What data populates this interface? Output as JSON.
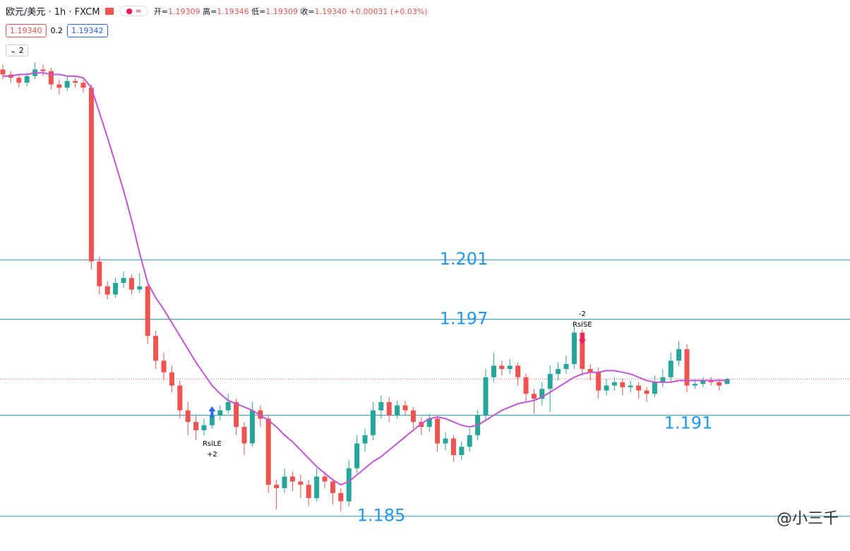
{
  "chart_data": {
    "type": "candlestick",
    "title": "欧元/美元 · 1h · FXCM",
    "ohlc_legend": [
      {
        "key": "开=",
        "value": "1.19309"
      },
      {
        "key": "高=",
        "value": "1.19346"
      },
      {
        "key": "低=",
        "value": "1.19309"
      },
      {
        "key": "收=",
        "value": "1.19340"
      }
    ],
    "change": "+0.00031 (+0.03%)",
    "bid": "1.19340",
    "spread": "0.2",
    "ask": "1.19342",
    "indicator_count": "2",
    "up_color": "#26a69a",
    "down_color": "#ef5350",
    "ma_color": "#c056d6",
    "ylim": [
      1.183,
      1.2163
    ],
    "ohlc": [
      [
        1.2121,
        1.2124,
        1.2115,
        1.2118
      ],
      [
        1.2118,
        1.212,
        1.2113,
        1.2116
      ],
      [
        1.2116,
        1.2118,
        1.211,
        1.2113
      ],
      [
        1.2113,
        1.2119,
        1.2111,
        1.2117
      ],
      [
        1.2117,
        1.2125,
        1.2115,
        1.2121
      ],
      [
        1.2121,
        1.2124,
        1.2117,
        1.212
      ],
      [
        1.212,
        1.2122,
        1.2109,
        1.2112
      ],
      [
        1.2112,
        1.2115,
        1.2106,
        1.211
      ],
      [
        1.211,
        1.2117,
        1.2108,
        1.2114
      ],
      [
        1.2114,
        1.2116,
        1.211,
        1.2113
      ],
      [
        1.2113,
        1.2115,
        1.2107,
        1.211
      ],
      [
        1.211,
        1.2112,
        1.2,
        1.2005
      ],
      [
        1.2005,
        1.2008,
        1.1985,
        1.199
      ],
      [
        1.199,
        1.1993,
        1.1982,
        1.1985
      ],
      [
        1.1985,
        1.1995,
        1.1983,
        1.1992
      ],
      [
        1.1992,
        1.1999,
        1.1989,
        1.1995
      ],
      [
        1.1995,
        1.1997,
        1.1985,
        1.1988
      ],
      [
        1.1988,
        1.1998,
        1.1986,
        1.199
      ],
      [
        1.199,
        1.1992,
        1.1955,
        1.196
      ],
      [
        1.196,
        1.1963,
        1.194,
        1.1945
      ],
      [
        1.1945,
        1.195,
        1.1933,
        1.1938
      ],
      [
        1.1938,
        1.1942,
        1.1926,
        1.193
      ],
      [
        1.193,
        1.1933,
        1.191,
        1.1915
      ],
      [
        1.1915,
        1.192,
        1.19,
        1.1908
      ],
      [
        1.1908,
        1.1912,
        1.1897,
        1.1903
      ],
      [
        1.1903,
        1.191,
        1.19,
        1.1906
      ],
      [
        1.1906,
        1.1915,
        1.1904,
        1.1912
      ],
      [
        1.1912,
        1.1918,
        1.1909,
        1.1915
      ],
      [
        1.1915,
        1.1925,
        1.1913,
        1.192
      ],
      [
        1.192,
        1.1922,
        1.19,
        1.1905
      ],
      [
        1.1905,
        1.1908,
        1.1888,
        1.1895
      ],
      [
        1.1895,
        1.192,
        1.1893,
        1.1915
      ],
      [
        1.1915,
        1.1918,
        1.1905,
        1.191
      ],
      [
        1.191,
        1.1912,
        1.1865,
        1.187
      ],
      [
        1.187,
        1.1873,
        1.1855,
        1.1868
      ],
      [
        1.1868,
        1.188,
        1.1865,
        1.1875
      ],
      [
        1.1875,
        1.1878,
        1.1866,
        1.1872
      ],
      [
        1.1872,
        1.1876,
        1.1862,
        1.187
      ],
      [
        1.187,
        1.1873,
        1.1857,
        1.1862
      ],
      [
        1.1862,
        1.188,
        1.186,
        1.1875
      ],
      [
        1.1875,
        1.1878,
        1.1868,
        1.1872
      ],
      [
        1.1872,
        1.1874,
        1.1858,
        1.1865
      ],
      [
        1.1865,
        1.1868,
        1.1854,
        1.186
      ],
      [
        1.186,
        1.1885,
        1.1857,
        1.188
      ],
      [
        1.188,
        1.19,
        1.1877,
        1.1895
      ],
      [
        1.1895,
        1.1904,
        1.189,
        1.19
      ],
      [
        1.19,
        1.192,
        1.1897,
        1.1915
      ],
      [
        1.1915,
        1.1924,
        1.191,
        1.192
      ],
      [
        1.192,
        1.1923,
        1.1908,
        1.1912
      ],
      [
        1.1912,
        1.1921,
        1.191,
        1.1918
      ],
      [
        1.1918,
        1.1921,
        1.1912,
        1.1915
      ],
      [
        1.1915,
        1.1917,
        1.1904,
        1.1908
      ],
      [
        1.1908,
        1.1911,
        1.19,
        1.1905
      ],
      [
        1.1905,
        1.1913,
        1.1902,
        1.191
      ],
      [
        1.191,
        1.1912,
        1.189,
        1.1895
      ],
      [
        1.1895,
        1.1902,
        1.1891,
        1.1898
      ],
      [
        1.1898,
        1.19,
        1.1884,
        1.1888
      ],
      [
        1.1888,
        1.1896,
        1.1885,
        1.1893
      ],
      [
        1.1893,
        1.1904,
        1.189,
        1.19
      ],
      [
        1.19,
        1.1915,
        1.1897,
        1.1912
      ],
      [
        1.1912,
        1.194,
        1.1909,
        1.1935
      ],
      [
        1.1935,
        1.195,
        1.1932,
        1.1942
      ],
      [
        1.1942,
        1.1945,
        1.1936,
        1.194
      ],
      [
        1.194,
        1.1946,
        1.1937,
        1.1942
      ],
      [
        1.1942,
        1.1944,
        1.193,
        1.1935
      ],
      [
        1.1935,
        1.1937,
        1.192,
        1.1925
      ],
      [
        1.1925,
        1.1928,
        1.1913,
        1.1922
      ],
      [
        1.1922,
        1.1932,
        1.1918,
        1.1928
      ],
      [
        1.1928,
        1.1942,
        1.1914,
        1.1937
      ],
      [
        1.1937,
        1.1944,
        1.1933,
        1.194
      ],
      [
        1.194,
        1.1948,
        1.1937,
        1.1943
      ],
      [
        1.1943,
        1.1966,
        1.194,
        1.1962
      ],
      [
        1.1962,
        1.1964,
        1.1936,
        1.194
      ],
      [
        1.194,
        1.1943,
        1.1933,
        1.1938
      ],
      [
        1.1938,
        1.1941,
        1.1922,
        1.1927
      ],
      [
        1.1927,
        1.1934,
        1.1924,
        1.193
      ],
      [
        1.193,
        1.1935,
        1.1927,
        1.1932
      ],
      [
        1.1932,
        1.1934,
        1.1924,
        1.1929
      ],
      [
        1.1929,
        1.1933,
        1.1926,
        1.193
      ],
      [
        1.193,
        1.1932,
        1.1922,
        1.1927
      ],
      [
        1.1927,
        1.1929,
        1.192,
        1.1925
      ],
      [
        1.1925,
        1.1936,
        1.1923,
        1.1932
      ],
      [
        1.1932,
        1.194,
        1.1929,
        1.1935
      ],
      [
        1.1935,
        1.195,
        1.1932,
        1.1945
      ],
      [
        1.1945,
        1.1957,
        1.1942,
        1.1952
      ],
      [
        1.1952,
        1.1955,
        1.1926,
        1.193
      ],
      [
        1.193,
        1.1934,
        1.1928,
        1.1931
      ],
      [
        1.1931,
        1.1935,
        1.1929,
        1.1933
      ],
      [
        1.1933,
        1.1935,
        1.193,
        1.1932
      ],
      [
        1.1932,
        1.1934,
        1.1927,
        1.193
      ],
      [
        1.19309,
        1.19346,
        1.19309,
        1.1934
      ]
    ],
    "ma": [
      1.2117,
      1.2117,
      1.2118,
      1.2118,
      1.2119,
      1.2119,
      1.2118,
      1.2118,
      1.2117,
      1.2117,
      1.2116,
      1.211,
      1.2095,
      1.208,
      1.2064,
      1.2048,
      1.203,
      1.201,
      1.1992,
      1.1983,
      1.1976,
      1.1968,
      1.196,
      1.1952,
      1.1944,
      1.1937,
      1.193,
      1.1925,
      1.1921,
      1.1919,
      1.1917,
      1.1915,
      1.1912,
      1.1909,
      1.1905,
      1.19,
      1.1896,
      1.1891,
      1.1886,
      1.1881,
      1.1877,
      1.1873,
      1.187,
      1.1872,
      1.1876,
      1.188,
      1.1884,
      1.1887,
      1.1891,
      1.1895,
      1.1899,
      1.1903,
      1.1907,
      1.191,
      1.1911,
      1.191,
      1.1908,
      1.1906,
      1.1905,
      1.1906,
      1.1909,
      1.1912,
      1.1915,
      1.1917,
      1.1919,
      1.192,
      1.1921,
      1.1923,
      1.1926,
      1.1929,
      1.1932,
      1.1935,
      1.1937,
      1.1938,
      1.1938,
      1.1939,
      1.1939,
      1.1938,
      1.1937,
      1.1935,
      1.1933,
      1.1932,
      1.1932,
      1.1932,
      1.1933,
      1.1933,
      1.1933,
      1.1933,
      1.1933,
      1.1933,
      1.1933
    ],
    "hlines": [
      {
        "value": 1.2006,
        "label": "1.201"
      },
      {
        "value": 1.197,
        "label": "1.197"
      },
      {
        "value": 1.1912,
        "label": "1.191"
      },
      {
        "value": 1.1851,
        "label": "1.185"
      }
    ],
    "signals": [
      {
        "name": "RsiLE",
        "size": "+2"
      },
      {
        "name": "RsiSE",
        "size": "-2"
      }
    ],
    "watermark": "@小三千"
  }
}
